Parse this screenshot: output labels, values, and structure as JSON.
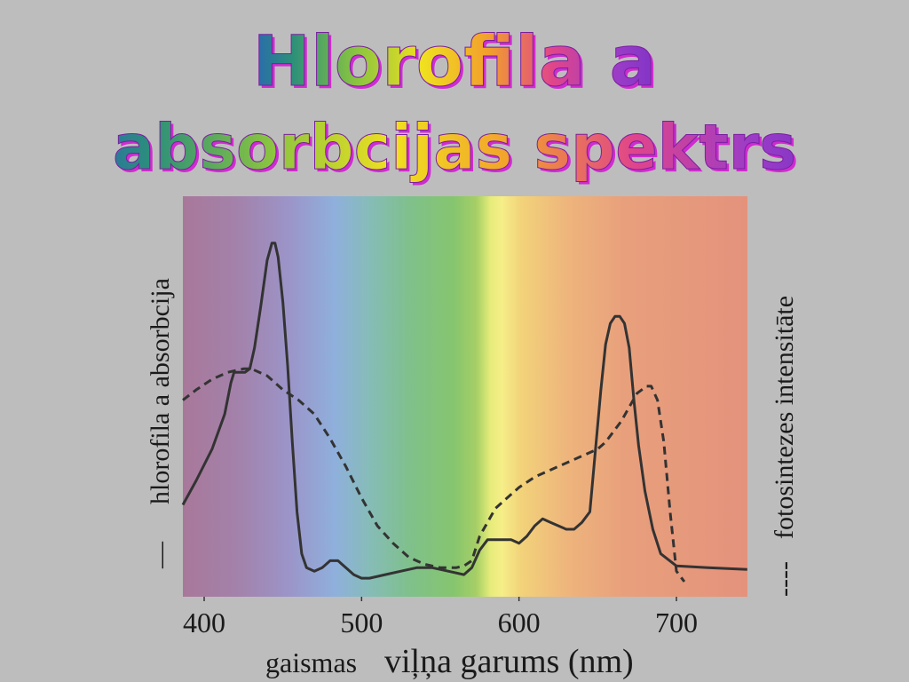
{
  "title": {
    "line1": "Hlorofila a",
    "line2": "absorbcijas spektrs",
    "gradient_colors": [
      "#2a4fd6",
      "#2b8f7a",
      "#8bc53f",
      "#f0e020",
      "#f2a02c",
      "#e0458a",
      "#9a3cc8",
      "#6b2fc2"
    ],
    "outline_color": "#d02bd0"
  },
  "chart_data": {
    "type": "line",
    "xlabel_prefix": "gaismas",
    "xlabel_main": "viļņa garums (nm)",
    "ylabel_left": "hlorofila a absorbcija",
    "ylabel_left_marker": "—",
    "ylabel_right": "fotosintezes intensitāte",
    "ylabel_right_marker": "----",
    "x_ticks": [
      "400",
      "500",
      "600",
      "700"
    ],
    "xlim": [
      385,
      745
    ],
    "ylim": [
      0,
      1
    ],
    "grid": false,
    "series": [
      {
        "style": "solid",
        "x": [
          385,
          395,
          405,
          413,
          417,
          419,
          421,
          423,
          426,
          429,
          432,
          436,
          440,
          443,
          445,
          447,
          450,
          453,
          456,
          459,
          462,
          465,
          470,
          475,
          480,
          485,
          490,
          495,
          500,
          505,
          515,
          525,
          535,
          545,
          555,
          565,
          570,
          575,
          580,
          585,
          590,
          595,
          600,
          605,
          610,
          615,
          620,
          625,
          630,
          635,
          640,
          645,
          648,
          652,
          655,
          658,
          661,
          664,
          667,
          670,
          673,
          676,
          680,
          685,
          690,
          700,
          720,
          745
        ],
        "y": [
          0.22,
          0.29,
          0.38,
          0.48,
          0.57,
          0.6,
          0.6,
          0.6,
          0.6,
          0.61,
          0.67,
          0.79,
          0.92,
          0.97,
          0.97,
          0.93,
          0.8,
          0.62,
          0.4,
          0.2,
          0.08,
          0.04,
          0.03,
          0.04,
          0.06,
          0.06,
          0.04,
          0.02,
          0.01,
          0.01,
          0.02,
          0.03,
          0.04,
          0.04,
          0.03,
          0.02,
          0.04,
          0.09,
          0.12,
          0.12,
          0.12,
          0.12,
          0.11,
          0.13,
          0.16,
          0.18,
          0.17,
          0.16,
          0.15,
          0.15,
          0.17,
          0.2,
          0.35,
          0.55,
          0.68,
          0.74,
          0.76,
          0.76,
          0.74,
          0.67,
          0.52,
          0.39,
          0.26,
          0.15,
          0.08,
          0.045,
          0.04,
          0.035
        ]
      },
      {
        "style": "dashed",
        "x": [
          385,
          395,
          405,
          415,
          425,
          430,
          440,
          450,
          460,
          470,
          480,
          490,
          500,
          510,
          520,
          530,
          540,
          550,
          560,
          565,
          570,
          575,
          580,
          585,
          590,
          600,
          610,
          620,
          630,
          640,
          650,
          655,
          660,
          665,
          670,
          675,
          678,
          681,
          684,
          688,
          692,
          696,
          700,
          705
        ],
        "y": [
          0.52,
          0.55,
          0.58,
          0.6,
          0.61,
          0.61,
          0.59,
          0.55,
          0.52,
          0.48,
          0.41,
          0.33,
          0.24,
          0.16,
          0.11,
          0.07,
          0.05,
          0.04,
          0.04,
          0.045,
          0.06,
          0.13,
          0.17,
          0.21,
          0.23,
          0.27,
          0.3,
          0.32,
          0.34,
          0.36,
          0.38,
          0.4,
          0.43,
          0.46,
          0.5,
          0.54,
          0.55,
          0.56,
          0.56,
          0.52,
          0.4,
          0.2,
          0.03,
          0.0
        ]
      }
    ]
  }
}
